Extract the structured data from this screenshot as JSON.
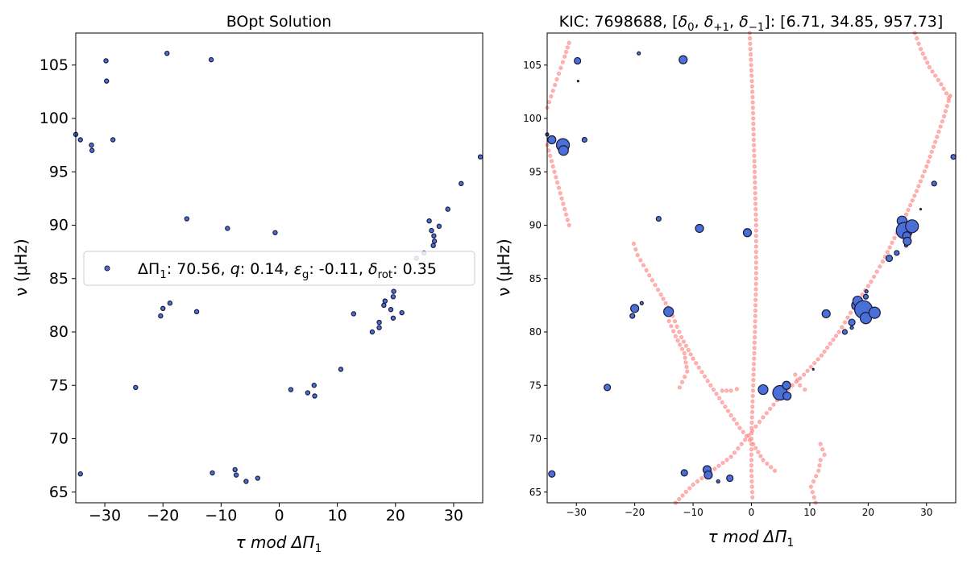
{
  "chart_data": [
    {
      "type": "scatter",
      "title": "BOpt Solution",
      "xlabel": "τ mod ΔΠ",
      "xlabel_sub": "1",
      "ylabel": "ν (μHz)",
      "xlim": [
        -35,
        35
      ],
      "ylim": [
        64,
        108
      ],
      "xticks": [
        -30,
        -20,
        -10,
        0,
        10,
        20,
        30
      ],
      "yticks": [
        65,
        70,
        75,
        80,
        85,
        90,
        95,
        100,
        105
      ],
      "grid": false,
      "legend": {
        "placement": "center",
        "parts": [
          "ΔΠ",
          "1",
          ": 70.56, ",
          "q",
          ": 0.14, ",
          "ε",
          "g",
          ": -0.11, ",
          "δ",
          "rot",
          ": 0.35"
        ]
      },
      "colors": {
        "marker_fill": "#4a6fd6",
        "marker_edge": "#1a1a3a"
      },
      "series": [
        {
          "points": [
            [
              -35.0,
              98.5
            ],
            [
              -34.2,
              98.0
            ],
            [
              -29.8,
              105.4
            ],
            [
              -29.7,
              103.5
            ],
            [
              -32.3,
              97.5
            ],
            [
              -32.2,
              97.0
            ],
            [
              -28.6,
              98.0
            ],
            [
              -19.3,
              106.1
            ],
            [
              -11.7,
              105.5
            ],
            [
              -15.9,
              90.6
            ],
            [
              -8.9,
              89.7
            ],
            [
              -0.7,
              89.3
            ],
            [
              -20.4,
              81.5
            ],
            [
              -20.0,
              82.2
            ],
            [
              -18.8,
              82.7
            ],
            [
              -14.2,
              81.9
            ],
            [
              -24.7,
              74.8
            ],
            [
              -34.2,
              66.7
            ],
            [
              -11.5,
              66.8
            ],
            [
              -7.6,
              67.1
            ],
            [
              -7.4,
              66.6
            ],
            [
              -5.7,
              66.0
            ],
            [
              -3.7,
              66.3
            ],
            [
              2.0,
              74.6
            ],
            [
              4.9,
              74.3
            ],
            [
              6.0,
              75.0
            ],
            [
              6.1,
              74.0
            ],
            [
              10.6,
              76.5
            ],
            [
              12.8,
              81.7
            ],
            [
              16.0,
              80.0
            ],
            [
              17.2,
              80.9
            ],
            [
              17.2,
              80.4
            ],
            [
              18.0,
              82.5
            ],
            [
              18.2,
              82.9
            ],
            [
              19.2,
              82.1
            ],
            [
              19.6,
              83.3
            ],
            [
              19.6,
              81.3
            ],
            [
              19.7,
              83.8
            ],
            [
              21.1,
              81.8
            ],
            [
              23.6,
              86.9
            ],
            [
              24.9,
              87.4
            ],
            [
              25.8,
              90.4
            ],
            [
              26.2,
              89.5
            ],
            [
              26.5,
              88.1
            ],
            [
              26.6,
              89.0
            ],
            [
              26.7,
              88.5
            ],
            [
              27.5,
              89.9
            ],
            [
              29.0,
              91.5
            ],
            [
              31.3,
              93.9
            ],
            [
              34.6,
              96.4
            ]
          ]
        }
      ]
    },
    {
      "type": "scatter",
      "title_parts": [
        "KIC: 7698688, [",
        "δ",
        "0",
        ", ",
        "δ",
        "+1",
        ", ",
        "δ",
        "−1",
        "]: [6.71, 34.85, 957.73]"
      ],
      "xlabel": "τ mod ΔΠ",
      "xlabel_sub": "1",
      "ylabel": "ν (μHz)",
      "xlim": [
        -35,
        35
      ],
      "ylim": [
        64,
        108
      ],
      "xticks": [
        -30,
        -20,
        -10,
        0,
        10,
        20,
        30
      ],
      "yticks": [
        65,
        70,
        75,
        80,
        85,
        90,
        95,
        100,
        105
      ],
      "grid": false,
      "colors": {
        "observed_fill": "#4a6fd6",
        "observed_edge": "#1a1a3a",
        "model_fill": "#ff9a9a"
      },
      "series": [
        {
          "role": "observed",
          "points": [
            [
              -35.0,
              98.5,
              2
            ],
            [
              -34.2,
              98.0,
              5
            ],
            [
              -29.8,
              105.4,
              4
            ],
            [
              -29.7,
              103.5,
              1
            ],
            [
              -32.3,
              97.5,
              8
            ],
            [
              -32.2,
              97.0,
              6
            ],
            [
              -28.6,
              98.0,
              3
            ],
            [
              -19.3,
              106.1,
              2
            ],
            [
              -11.7,
              105.5,
              5
            ],
            [
              -15.9,
              90.6,
              3
            ],
            [
              -8.9,
              89.7,
              5
            ],
            [
              -0.7,
              89.3,
              5
            ],
            [
              -20.4,
              81.5,
              3
            ],
            [
              -20.0,
              82.2,
              5
            ],
            [
              -18.8,
              82.7,
              2
            ],
            [
              -14.2,
              81.9,
              6
            ],
            [
              -24.7,
              74.8,
              4
            ],
            [
              -34.2,
              66.7,
              4
            ],
            [
              -11.5,
              66.8,
              4
            ],
            [
              -7.6,
              67.1,
              5
            ],
            [
              -7.4,
              66.6,
              5
            ],
            [
              -5.7,
              66.0,
              2
            ],
            [
              -3.7,
              66.3,
              4
            ],
            [
              2.0,
              74.6,
              6
            ],
            [
              4.9,
              74.3,
              9
            ],
            [
              6.0,
              75.0,
              5
            ],
            [
              6.1,
              74.0,
              5
            ],
            [
              10.6,
              76.5,
              1
            ],
            [
              12.8,
              81.7,
              5
            ],
            [
              16.0,
              80.0,
              3
            ],
            [
              17.2,
              80.9,
              4
            ],
            [
              17.2,
              80.4,
              2
            ],
            [
              18.0,
              82.5,
              6
            ],
            [
              18.2,
              82.9,
              6
            ],
            [
              19.2,
              82.1,
              11
            ],
            [
              19.6,
              83.3,
              3
            ],
            [
              19.6,
              81.3,
              7
            ],
            [
              19.7,
              83.8,
              2
            ],
            [
              21.1,
              81.8,
              7
            ],
            [
              23.6,
              86.9,
              4
            ],
            [
              24.9,
              87.4,
              3
            ],
            [
              25.8,
              90.4,
              6
            ],
            [
              26.2,
              89.5,
              10
            ],
            [
              26.5,
              88.1,
              2
            ],
            [
              26.6,
              89.0,
              5
            ],
            [
              26.7,
              88.5,
              5
            ],
            [
              27.5,
              89.9,
              8
            ],
            [
              29.0,
              91.5,
              1
            ],
            [
              31.3,
              93.9,
              3
            ],
            [
              34.6,
              96.4,
              3
            ]
          ]
        },
        {
          "role": "model",
          "tracks": [
            [
              [
                -13,
                64.0
              ],
              [
                -10,
                65.7
              ],
              [
                -7,
                66.9
              ],
              [
                -3.5,
                68.3
              ],
              [
                -0.5,
                70.3
              ],
              [
                2,
                72.0
              ],
              [
                5,
                74.0
              ],
              [
                9,
                76.0
              ],
              [
                12,
                77.8
              ],
              [
                15,
                80.0
              ],
              [
                18,
                82.7
              ],
              [
                20.5,
                84.7
              ],
              [
                22.5,
                86.6
              ],
              [
                24.5,
                88.8
              ],
              [
                26.5,
                91.0
              ],
              [
                28.3,
                93.2
              ],
              [
                30,
                95.5
              ],
              [
                31.5,
                97.8
              ],
              [
                33,
                100.2
              ],
              [
                34.3,
                102.6
              ]
            ],
            [
              [
                -35,
                101.0
              ],
              [
                -34,
                102.6
              ],
              [
                -33,
                104.2
              ],
              [
                -32,
                105.8
              ],
              [
                -31,
                107.5
              ]
            ],
            [
              [
                4,
                67.0
              ],
              [
                2,
                68.0
              ],
              [
                0.3,
                69.5
              ],
              [
                -2,
                71.0
              ],
              [
                -4.5,
                73.0
              ],
              [
                -7,
                75.0
              ],
              [
                -10,
                77.5
              ],
              [
                -12,
                79.5
              ],
              [
                -13.5,
                81.5
              ],
              [
                -15.5,
                83.5
              ],
              [
                -17.5,
                85.3
              ],
              [
                -19.5,
                87.2
              ],
              [
                -20.5,
                88.8
              ]
            ],
            [
              [
                -35,
                97.5
              ],
              [
                -34,
                95.5
              ],
              [
                -33,
                93.5
              ],
              [
                -32,
                91.5
              ],
              [
                -31,
                89.5
              ]
            ],
            [
              [
                -12.3,
                74.8
              ],
              [
                -11,
                76.3
              ],
              [
                -11.5,
                78.0
              ],
              [
                -13,
                79.6
              ],
              [
                -14.5,
                81.5
              ]
            ],
            [
              [
                -0.3,
                108.0
              ],
              [
                0.2,
                102.0
              ],
              [
                0.5,
                96.0
              ],
              [
                0.8,
                90.0
              ],
              [
                0.8,
                85.0
              ],
              [
                0.6,
                80.0
              ],
              [
                0.3,
                75.0
              ],
              [
                0.0,
                70.5
              ],
              [
                0.0,
                67.0
              ],
              [
                0.2,
                64.0
              ]
            ],
            [
              [
                11.0,
                64.0
              ],
              [
                10.2,
                65.5
              ],
              [
                11.5,
                67.0
              ],
              [
                12.0,
                68.5
              ]
            ],
            [
              [
                12.5,
                68.5
              ],
              [
                11.5,
                70.0
              ]
            ],
            [
              [
                7.5,
                76.0
              ],
              [
                8.3,
                75.0
              ],
              [
                10.0,
                74.2
              ]
            ],
            [
              [
                28,
                108.0
              ],
              [
                29,
                106.5
              ],
              [
                30.5,
                104.8
              ],
              [
                32.5,
                103.2
              ],
              [
                34.3,
                101.5
              ]
            ],
            [
              [
                -5,
                74.5
              ],
              [
                -3.5,
                74.5
              ],
              [
                -1.5,
                74.8
              ]
            ]
          ]
        }
      ]
    }
  ]
}
